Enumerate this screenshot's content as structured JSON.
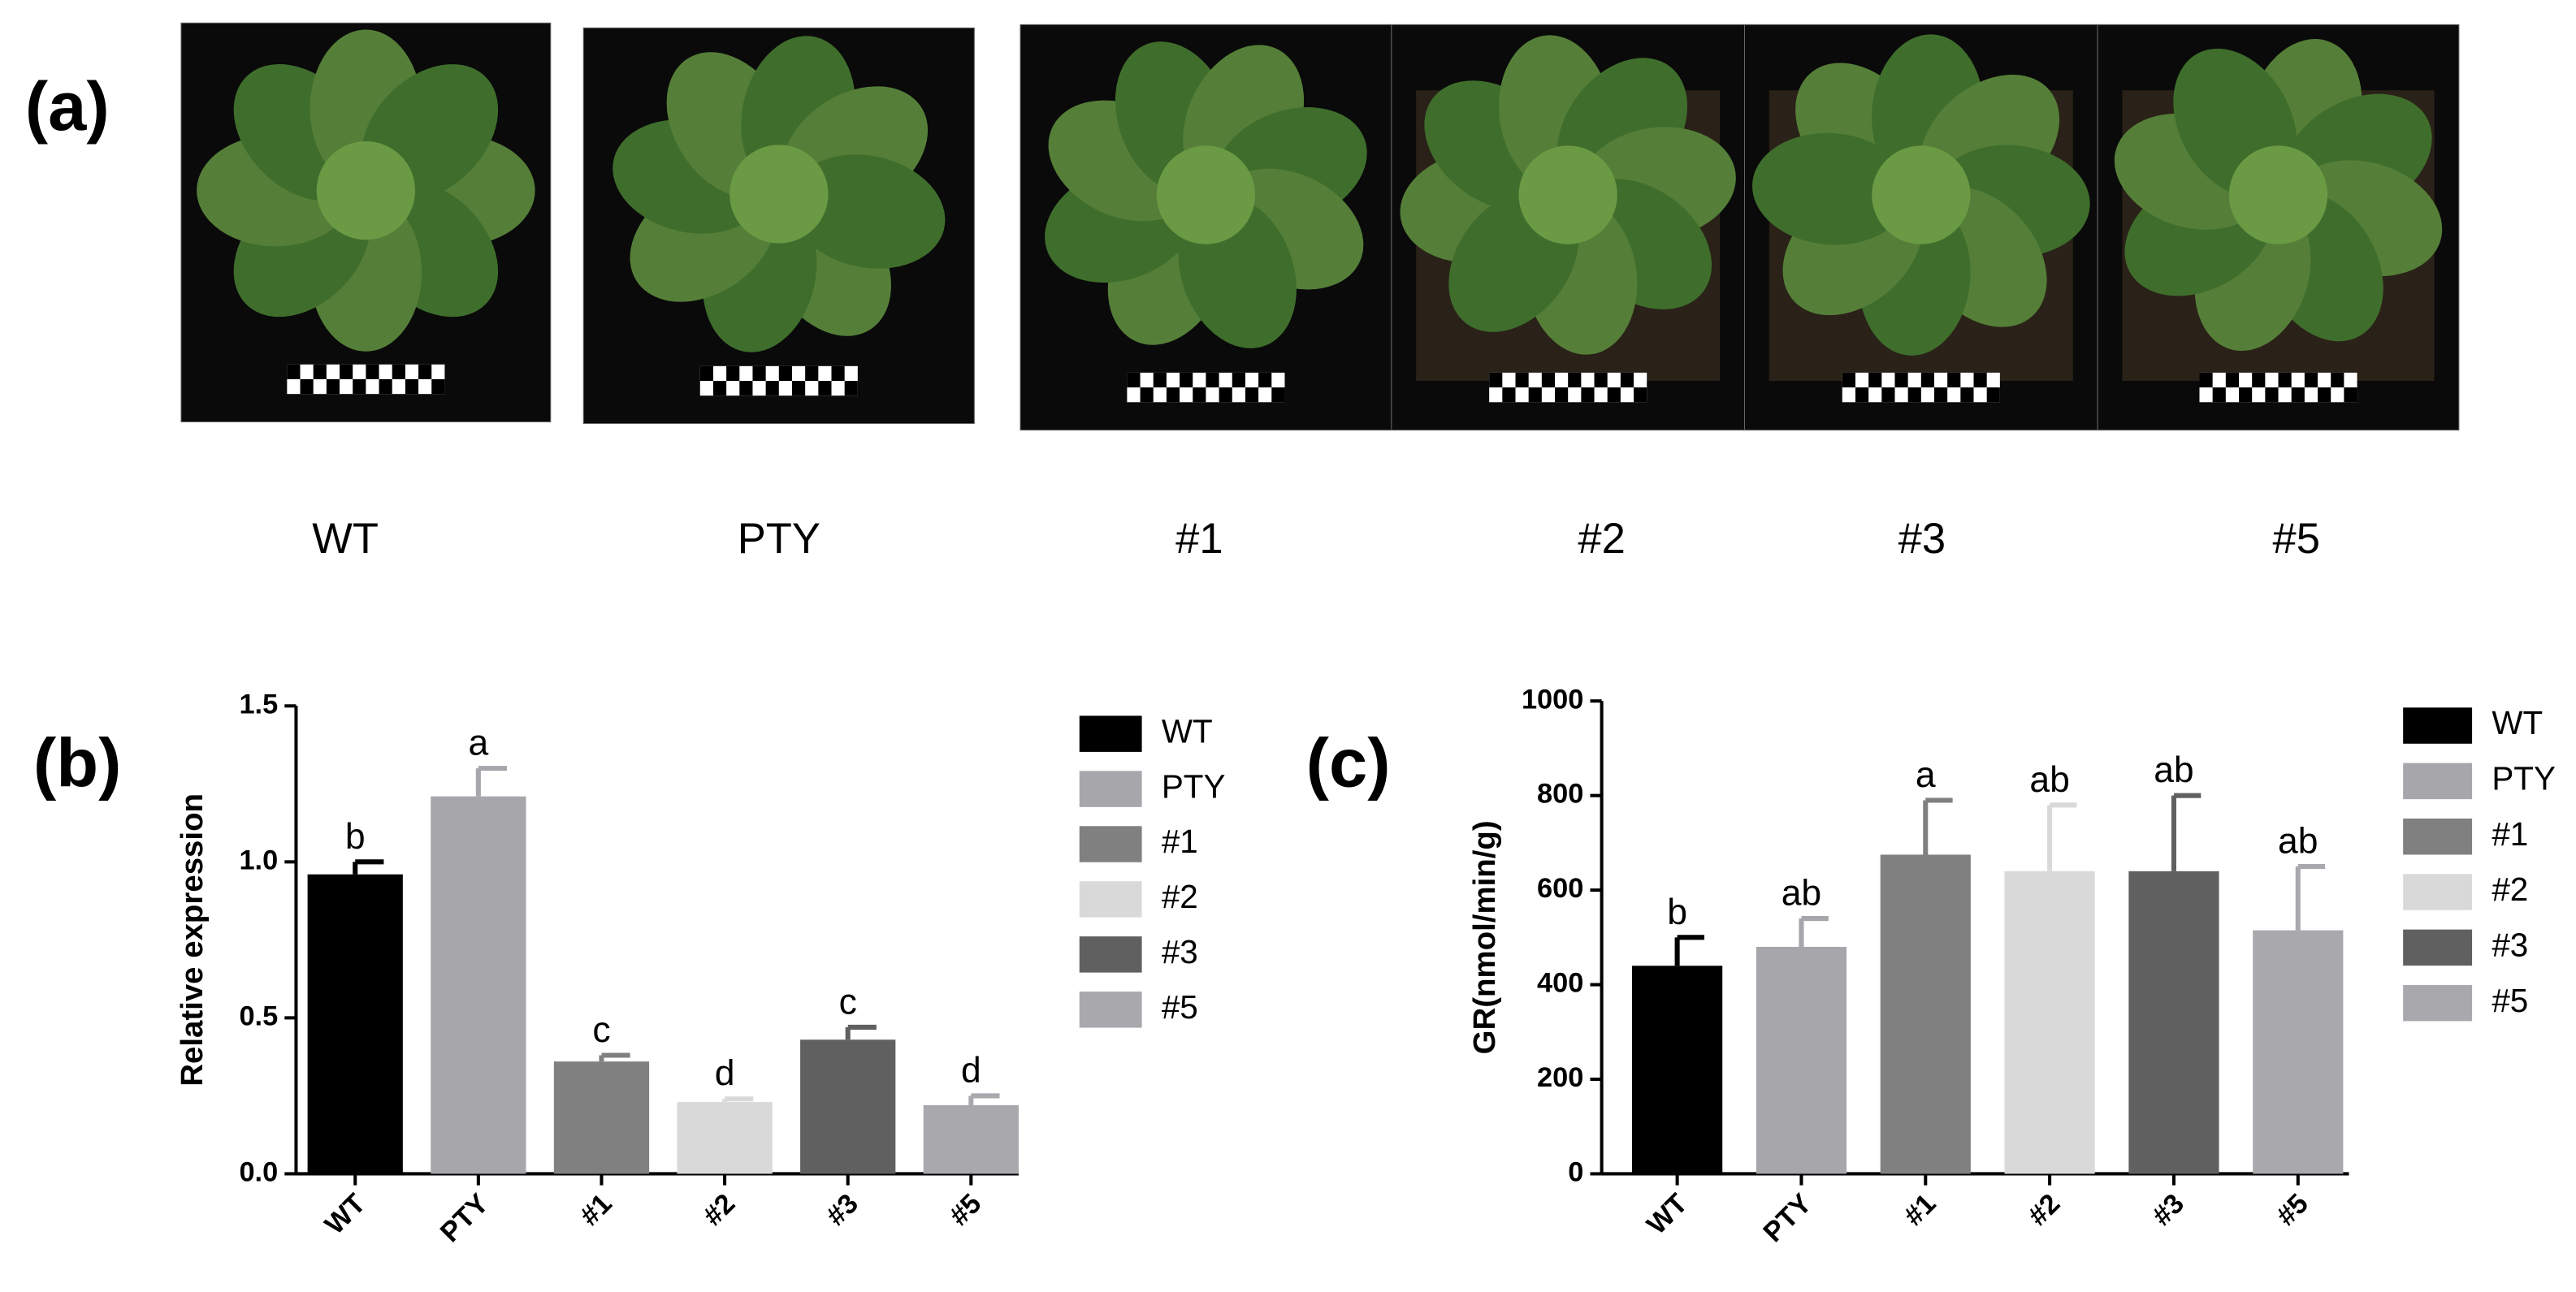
{
  "photo_panel": {
    "label": "(a)",
    "captions": [
      "WT",
      "PTY",
      "#1",
      "#2",
      "#3",
      "#5"
    ]
  },
  "chart_data": [
    {
      "type": "bar",
      "panel_label": "(b)",
      "ylabel": "Relative expression",
      "categories": [
        "WT",
        "PTY",
        "#1",
        "#2",
        "#3",
        "#5"
      ],
      "values": [
        0.96,
        1.21,
        0.36,
        0.23,
        0.43,
        0.22
      ],
      "errors": [
        0.04,
        0.09,
        0.02,
        0.01,
        0.04,
        0.03
      ],
      "value_labels": [
        "b",
        "a",
        "c",
        "d",
        "c",
        "d"
      ],
      "colors": [
        "#000000",
        "#a6a6ab",
        "#808080",
        "#d9d9d9",
        "#606060",
        "#a8a8ad"
      ],
      "ylim": [
        0,
        1.5
      ],
      "yticks": [
        {
          "value": 0,
          "label": "0.0"
        },
        {
          "value": 0.5,
          "label": "0.5"
        },
        {
          "value": 1,
          "label": "1.0"
        },
        {
          "value": 1.5,
          "label": "1.5"
        }
      ],
      "legend": "right"
    },
    {
      "type": "bar",
      "panel_label": "(c)",
      "ylabel": "GR(nmol/min/g)",
      "categories": [
        "WT",
        "PTY",
        "#1",
        "#2",
        "#3",
        "#5"
      ],
      "values": [
        440,
        480,
        675,
        640,
        640,
        515
      ],
      "errors": [
        60,
        60,
        115,
        140,
        160,
        135
      ],
      "value_labels": [
        "b",
        "ab",
        "a",
        "ab",
        "ab",
        "ab"
      ],
      "colors": [
        "#000000",
        "#a6a6ab",
        "#808080",
        "#d9d9d9",
        "#606060",
        "#a8a8ad"
      ],
      "ylim": [
        0,
        1000
      ],
      "yticks": [
        0,
        200,
        400,
        600,
        800,
        1000
      ],
      "legend": "right"
    }
  ]
}
